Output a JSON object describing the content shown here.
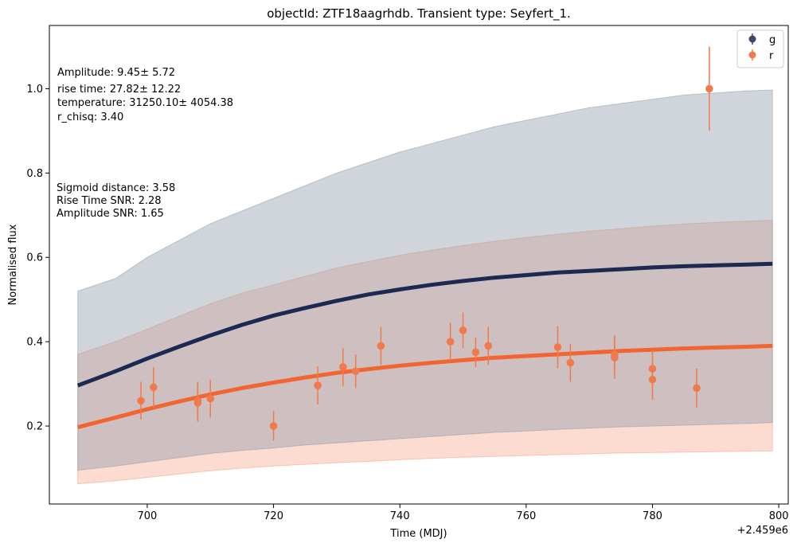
{
  "chart_data": {
    "type": "scatter",
    "title": "objectId: ZTF18aagrhdb. Transient type: Seyfert_1.",
    "xlabel": "Time (MDJ)",
    "ylabel": "Normalised flux",
    "x_offset_label": "+2.459e6",
    "xlim": [
      684.5,
      801.5
    ],
    "ylim": [
      0.015,
      1.15
    ],
    "xticks": [
      700,
      720,
      740,
      760,
      780,
      800
    ],
    "yticks": [
      0.2,
      0.4,
      0.6,
      0.8,
      1.0
    ],
    "xtick_labels": [
      "700",
      "720",
      "740",
      "760",
      "780",
      "800"
    ],
    "ytick_labels": [
      "0.2",
      "0.4",
      "0.6",
      "0.8",
      "1.0"
    ],
    "legend": {
      "position": "top-right",
      "entries": [
        {
          "label": "g",
          "color": "#3b4a6b"
        },
        {
          "label": "r",
          "color": "#f07a4c"
        }
      ]
    },
    "annotations": [
      {
        "id": "amplitude",
        "text": "Amplitude: 9.45± 5.72"
      },
      {
        "id": "rise_time",
        "text": "rise time: 27.82± 12.22"
      },
      {
        "id": "temperature",
        "text": "temperature: 31250.10± 4054.38"
      },
      {
        "id": "r_chisq",
        "text": "r_chisq: 3.40"
      },
      {
        "id": "sigmoid_distance",
        "text": "Sigmoid distance: 3.58"
      },
      {
        "id": "rise_time_snr",
        "text": "Rise Time SNR: 2.28"
      },
      {
        "id": "amplitude_snr",
        "text": "Amplitude SNR: 1.65"
      }
    ],
    "colors": {
      "g_line": "#1a2a52",
      "g_band": "#8a97a8",
      "r_line": "#f26430",
      "r_band": "#f79a7a",
      "r_points": "#f07a4c"
    },
    "bands": {
      "g": {
        "x": [
          689,
          695,
          700,
          705,
          710,
          715,
          720,
          725,
          730,
          735,
          740,
          745,
          750,
          755,
          760,
          765,
          770,
          775,
          780,
          785,
          790,
          795,
          799
        ],
        "lower": [
          0.095,
          0.105,
          0.115,
          0.125,
          0.135,
          0.142,
          0.148,
          0.155,
          0.16,
          0.165,
          0.17,
          0.175,
          0.18,
          0.185,
          0.188,
          0.192,
          0.195,
          0.198,
          0.2,
          0.202,
          0.204,
          0.206,
          0.208
        ],
        "upper": [
          0.52,
          0.55,
          0.6,
          0.64,
          0.68,
          0.71,
          0.74,
          0.77,
          0.8,
          0.825,
          0.85,
          0.87,
          0.89,
          0.91,
          0.925,
          0.94,
          0.955,
          0.965,
          0.975,
          0.985,
          0.99,
          0.995,
          0.997
        ]
      },
      "r": {
        "x": [
          689,
          695,
          700,
          705,
          710,
          715,
          720,
          725,
          730,
          735,
          740,
          745,
          750,
          755,
          760,
          765,
          770,
          775,
          780,
          785,
          790,
          795,
          799
        ],
        "lower": [
          0.063,
          0.07,
          0.078,
          0.086,
          0.094,
          0.1,
          0.105,
          0.109,
          0.113,
          0.116,
          0.12,
          0.123,
          0.126,
          0.128,
          0.13,
          0.132,
          0.134,
          0.136,
          0.137,
          0.138,
          0.139,
          0.14,
          0.141
        ],
        "upper": [
          0.37,
          0.4,
          0.43,
          0.46,
          0.49,
          0.515,
          0.535,
          0.555,
          0.575,
          0.59,
          0.605,
          0.617,
          0.628,
          0.638,
          0.647,
          0.655,
          0.662,
          0.668,
          0.674,
          0.679,
          0.683,
          0.686,
          0.688
        ]
      }
    },
    "series": [
      {
        "name": "g",
        "kind": "model_line",
        "x": [
          689,
          695,
          700,
          705,
          710,
          715,
          720,
          725,
          730,
          735,
          740,
          745,
          750,
          755,
          760,
          765,
          770,
          775,
          780,
          785,
          790,
          795,
          799
        ],
        "y": [
          0.296,
          0.33,
          0.36,
          0.388,
          0.415,
          0.44,
          0.462,
          0.48,
          0.497,
          0.512,
          0.524,
          0.535,
          0.544,
          0.552,
          0.558,
          0.564,
          0.568,
          0.572,
          0.576,
          0.579,
          0.581,
          0.583,
          0.585
        ]
      },
      {
        "name": "r",
        "kind": "model_line",
        "x": [
          689,
          695,
          700,
          705,
          710,
          715,
          720,
          725,
          730,
          735,
          740,
          745,
          750,
          755,
          760,
          765,
          770,
          775,
          780,
          785,
          790,
          795,
          799
        ],
        "y": [
          0.197,
          0.22,
          0.24,
          0.258,
          0.275,
          0.29,
          0.303,
          0.315,
          0.326,
          0.335,
          0.343,
          0.35,
          0.356,
          0.362,
          0.366,
          0.37,
          0.374,
          0.378,
          0.381,
          0.384,
          0.386,
          0.388,
          0.39
        ]
      },
      {
        "name": "r",
        "kind": "observations",
        "x": [
          699,
          701,
          708,
          708,
          710,
          720,
          727,
          731,
          733,
          737,
          748,
          750,
          752,
          754,
          765,
          767,
          774,
          774,
          780,
          780,
          787,
          789
        ],
        "y": [
          0.26,
          0.292,
          0.26,
          0.255,
          0.265,
          0.2,
          0.296,
          0.34,
          0.33,
          0.39,
          0.4,
          0.427,
          0.375,
          0.39,
          0.387,
          0.35,
          0.37,
          0.362,
          0.336,
          0.31,
          0.29,
          1.0
        ],
        "err": [
          0.045,
          0.048,
          0.045,
          0.045,
          0.045,
          0.035,
          0.045,
          0.045,
          0.04,
          0.045,
          0.045,
          0.042,
          0.035,
          0.045,
          0.05,
          0.045,
          0.045,
          0.05,
          0.045,
          0.048,
          0.046,
          0.1
        ]
      }
    ]
  }
}
